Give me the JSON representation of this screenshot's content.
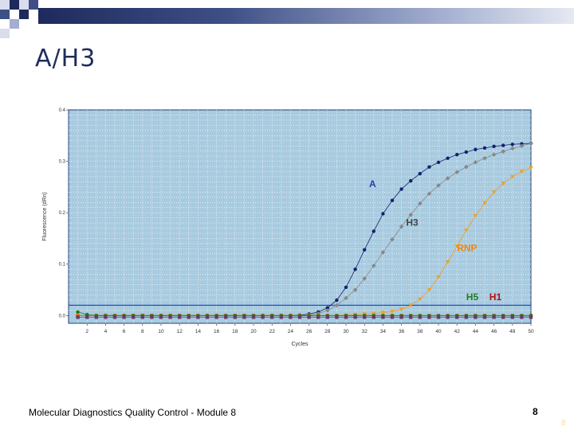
{
  "slide": {
    "title": "A/H3",
    "footer": "Molecular Diagnostics Quality Control - Module 8",
    "page_number": "8",
    "corner_number": "8"
  },
  "chart_data": {
    "type": "scatter",
    "xlabel": "Cycles",
    "ylabel": "Fluorescence (dRn)",
    "xlim": [
      0,
      50
    ],
    "ylim": [
      -0.015,
      0.4
    ],
    "xticks": [
      2,
      4,
      6,
      8,
      10,
      12,
      14,
      16,
      18,
      20,
      22,
      24,
      26,
      28,
      30,
      32,
      34,
      36,
      38,
      40,
      42,
      44,
      46,
      48,
      50
    ],
    "yticks": [
      0.0,
      0.1,
      0.2,
      0.3,
      0.4
    ],
    "ytick_labels": [
      "0.0",
      "0.1",
      "0.2",
      "0.3",
      "0.4"
    ],
    "grid": true,
    "threshold": 0.02,
    "background": "#a9cbe0",
    "annotations": [
      {
        "text": "A",
        "x": 32.5,
        "y": 0.25,
        "color": "#2b3fa6"
      },
      {
        "text": "H3",
        "x": 36.5,
        "y": 0.175,
        "color": "#444444"
      },
      {
        "text": "RNP",
        "x": 42,
        "y": 0.125,
        "color": "#e88a1a"
      },
      {
        "text": "H5",
        "x": 43,
        "y": 0.03,
        "color": "#1f7a1f"
      },
      {
        "text": "H1",
        "x": 45.5,
        "y": 0.03,
        "color": "#b01010"
      }
    ],
    "series": [
      {
        "color": "#14206e",
        "marker": "circle",
        "x": [
          1,
          2,
          3,
          4,
          5,
          6,
          7,
          8,
          9,
          10,
          11,
          12,
          13,
          14,
          15,
          16,
          17,
          18,
          19,
          20,
          21,
          22,
          23,
          24,
          25,
          26,
          27,
          28,
          29,
          30,
          31,
          32,
          33,
          34,
          35,
          36,
          37,
          38,
          39,
          40,
          41,
          42,
          43,
          44,
          45,
          46,
          47,
          48,
          49,
          50
        ],
        "y": [
          0,
          0,
          0,
          0,
          0,
          0,
          0,
          0,
          0,
          0,
          0,
          0,
          0,
          0,
          0,
          0,
          0,
          0,
          0,
          0,
          0,
          0,
          0,
          0,
          0.001,
          0.003,
          0.007,
          0.015,
          0.03,
          0.055,
          0.09,
          0.128,
          0.164,
          0.198,
          0.224,
          0.246,
          0.262,
          0.276,
          0.289,
          0.298,
          0.306,
          0.313,
          0.318,
          0.323,
          0.326,
          0.329,
          0.331,
          0.333,
          0.334,
          0.335
        ]
      },
      {
        "color": "#888888",
        "marker": "diamond",
        "x": [
          1,
          2,
          3,
          4,
          5,
          6,
          7,
          8,
          9,
          10,
          11,
          12,
          13,
          14,
          15,
          16,
          17,
          18,
          19,
          20,
          21,
          22,
          23,
          24,
          25,
          26,
          27,
          28,
          29,
          30,
          31,
          32,
          33,
          34,
          35,
          36,
          37,
          38,
          39,
          40,
          41,
          42,
          43,
          44,
          45,
          46,
          47,
          48,
          49,
          50
        ],
        "y": [
          0,
          0,
          0,
          0,
          0,
          0,
          0,
          0,
          0,
          0,
          0,
          0,
          0,
          0,
          0,
          0,
          0,
          0,
          0,
          0,
          0,
          0,
          0,
          0,
          0,
          0.001,
          0.004,
          0.01,
          0.02,
          0.034,
          0.05,
          0.072,
          0.097,
          0.123,
          0.148,
          0.173,
          0.196,
          0.218,
          0.237,
          0.253,
          0.267,
          0.279,
          0.289,
          0.298,
          0.306,
          0.313,
          0.319,
          0.325,
          0.33,
          0.335
        ]
      },
      {
        "color": "#f0a020",
        "marker": "triangle-down",
        "x": [
          1,
          2,
          3,
          4,
          5,
          6,
          7,
          8,
          9,
          10,
          11,
          12,
          13,
          14,
          15,
          16,
          17,
          18,
          19,
          20,
          21,
          22,
          23,
          24,
          25,
          26,
          27,
          28,
          29,
          30,
          31,
          32,
          33,
          34,
          35,
          36,
          37,
          38,
          39,
          40,
          41,
          42,
          43,
          44,
          45,
          46,
          47,
          48,
          49,
          50
        ],
        "y": [
          0,
          0,
          0,
          0,
          0,
          0,
          0,
          0,
          0,
          0,
          0,
          0,
          0,
          0,
          0,
          0,
          0,
          0,
          0,
          0,
          0,
          0,
          0,
          0,
          0,
          0,
          0,
          0,
          0,
          0.001,
          0.002,
          0.003,
          0.004,
          0.006,
          0.008,
          0.012,
          0.02,
          0.032,
          0.05,
          0.075,
          0.104,
          0.135,
          0.166,
          0.194,
          0.219,
          0.24,
          0.257,
          0.27,
          0.28,
          0.287
        ]
      },
      {
        "color": "#e07818",
        "marker": "square",
        "x": [
          1,
          2,
          3,
          4,
          5,
          6,
          7,
          8,
          9,
          10,
          11,
          12,
          13,
          14,
          15,
          16,
          17,
          18,
          19,
          20,
          21,
          22,
          23,
          24,
          25,
          26,
          27,
          28,
          29,
          30,
          31,
          32,
          33,
          34,
          35,
          36,
          37,
          38,
          39,
          40,
          41,
          42,
          43,
          44,
          45,
          46,
          47,
          48,
          49,
          50
        ],
        "y": [
          0,
          0,
          0,
          0,
          0,
          0,
          0,
          0,
          0,
          0,
          0,
          0,
          0,
          0,
          0,
          0,
          0,
          0,
          0,
          0,
          0,
          0,
          0,
          0,
          0,
          0,
          0,
          0,
          0,
          0,
          0,
          0,
          0,
          0,
          0,
          0,
          0,
          0,
          0,
          0,
          0,
          0,
          0,
          0,
          0,
          0,
          0,
          0,
          0,
          0
        ]
      },
      {
        "color": "#1f7a1f",
        "marker": "circle",
        "x": [
          1,
          2,
          3,
          4,
          5,
          6,
          7,
          8,
          9,
          10,
          11,
          12,
          13,
          14,
          15,
          16,
          17,
          18,
          19,
          20,
          21,
          22,
          23,
          24,
          25,
          26,
          27,
          28,
          29,
          30,
          31,
          32,
          33,
          34,
          35,
          36,
          37,
          38,
          39,
          40,
          41,
          42,
          43,
          44,
          45,
          46,
          47,
          48,
          49,
          50
        ],
        "y": [
          0.007,
          0.002,
          0,
          0,
          0,
          0,
          0,
          0,
          0,
          0,
          0,
          0,
          0,
          0,
          0,
          0,
          0,
          0,
          0,
          0,
          0,
          0,
          0,
          0,
          0,
          0,
          0,
          0,
          0,
          0,
          0,
          0,
          0,
          0,
          0,
          0,
          0,
          0,
          0,
          0,
          0,
          0,
          0,
          0,
          0,
          0,
          0,
          0,
          0,
          0
        ]
      },
      {
        "color": "#6a3a6a",
        "marker": "square",
        "x": [
          1,
          2,
          3,
          4,
          5,
          6,
          7,
          8,
          9,
          10,
          11,
          12,
          13,
          14,
          15,
          16,
          17,
          18,
          19,
          20,
          21,
          22,
          23,
          24,
          25,
          26,
          27,
          28,
          29,
          30,
          31,
          32,
          33,
          34,
          35,
          36,
          37,
          38,
          39,
          40,
          41,
          42,
          43,
          44,
          45,
          46,
          47,
          48,
          49,
          50
        ],
        "y": [
          -0.003,
          -0.003,
          -0.003,
          -0.003,
          -0.003,
          -0.003,
          -0.003,
          -0.003,
          -0.003,
          -0.003,
          -0.003,
          -0.003,
          -0.003,
          -0.003,
          -0.003,
          -0.003,
          -0.003,
          -0.003,
          -0.003,
          -0.003,
          -0.003,
          -0.003,
          -0.003,
          -0.003,
          -0.003,
          -0.003,
          -0.003,
          -0.003,
          -0.003,
          -0.003,
          -0.003,
          -0.003,
          -0.003,
          -0.003,
          -0.003,
          -0.003,
          -0.003,
          -0.003,
          -0.003,
          -0.003,
          -0.003,
          -0.003,
          -0.003,
          -0.003,
          -0.003,
          -0.003,
          -0.003,
          -0.003,
          -0.003,
          -0.003
        ]
      }
    ]
  }
}
